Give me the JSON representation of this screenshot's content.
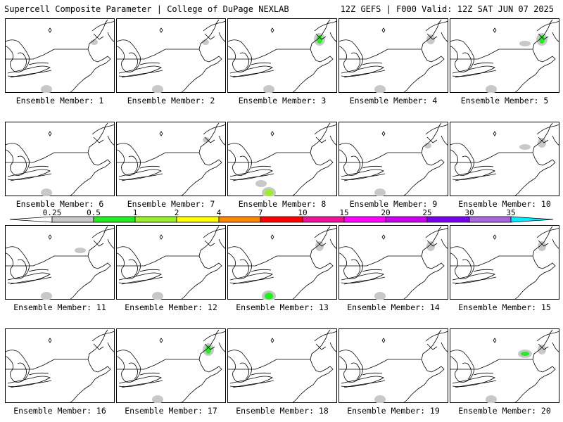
{
  "header": {
    "left_title": "Supercell Composite Parameter | College of DuPage NEXLAB",
    "right_title": "12Z GEFS | F000 Valid: 12Z SAT JUN 07 2025"
  },
  "panel_label_prefix": "Ensemble Member: ",
  "members": [
    {
      "label": "Ensemble Member: 1",
      "blobs": [
        {
          "lvl": 0,
          "loc": "ne-coast"
        },
        {
          "lvl": 0,
          "loc": "south"
        }
      ]
    },
    {
      "label": "Ensemble Member: 2",
      "blobs": [
        {
          "lvl": 0,
          "loc": "ne-coast"
        },
        {
          "lvl": 0,
          "loc": "south"
        }
      ]
    },
    {
      "label": "Ensemble Member: 3",
      "blobs": [
        {
          "lvl": 1,
          "loc": "maine"
        },
        {
          "lvl": 0,
          "loc": "south"
        }
      ]
    },
    {
      "label": "Ensemble Member: 4",
      "blobs": [
        {
          "lvl": 0,
          "loc": "maine"
        },
        {
          "lvl": 0,
          "loc": "south"
        }
      ]
    },
    {
      "label": "Ensemble Member: 5",
      "blobs": [
        {
          "lvl": 1,
          "loc": "maine"
        },
        {
          "lvl": 0,
          "loc": "ny"
        },
        {
          "lvl": 0,
          "loc": "south"
        }
      ]
    },
    {
      "label": "Ensemble Member: 6",
      "blobs": [
        {
          "lvl": 0,
          "loc": "south"
        }
      ]
    },
    {
      "label": "Ensemble Member: 7",
      "blobs": [
        {
          "lvl": 0,
          "loc": "vt"
        }
      ]
    },
    {
      "label": "Ensemble Member: 8",
      "blobs": [
        {
          "lvl": 0,
          "loc": "ohio"
        },
        {
          "lvl": 2,
          "loc": "south"
        }
      ]
    },
    {
      "label": "Ensemble Member: 9",
      "blobs": [
        {
          "lvl": 0,
          "loc": "ne-coast"
        },
        {
          "lvl": 0,
          "loc": "south"
        }
      ]
    },
    {
      "label": "Ensemble Member: 10",
      "blobs": [
        {
          "lvl": 0,
          "loc": "maine"
        },
        {
          "lvl": 0,
          "loc": "ny"
        }
      ]
    },
    {
      "label": "Ensemble Member: 11",
      "blobs": [
        {
          "lvl": 0,
          "loc": "ny"
        },
        {
          "lvl": 0,
          "loc": "south"
        }
      ]
    },
    {
      "label": "Ensemble Member: 12",
      "blobs": [
        {
          "lvl": 0,
          "loc": "south"
        }
      ]
    },
    {
      "label": "Ensemble Member: 13",
      "blobs": [
        {
          "lvl": 0,
          "loc": "maine"
        },
        {
          "lvl": 1,
          "loc": "south"
        }
      ]
    },
    {
      "label": "Ensemble Member: 14",
      "blobs": [
        {
          "lvl": 0,
          "loc": "maine"
        },
        {
          "lvl": 0,
          "loc": "south"
        }
      ]
    },
    {
      "label": "Ensemble Member: 15",
      "blobs": [
        {
          "lvl": 0,
          "loc": "maine"
        }
      ]
    },
    {
      "label": "Ensemble Member: 16",
      "blobs": []
    },
    {
      "label": "Ensemble Member: 17",
      "blobs": [
        {
          "lvl": 1,
          "loc": "maine"
        },
        {
          "lvl": 0,
          "loc": "south"
        }
      ]
    },
    {
      "label": "Ensemble Member: 18",
      "blobs": []
    },
    {
      "label": "Ensemble Member: 19",
      "blobs": [
        {
          "lvl": 0,
          "loc": "south"
        }
      ]
    },
    {
      "label": "Ensemble Member: 20",
      "blobs": [
        {
          "lvl": 1,
          "loc": "ny"
        },
        {
          "lvl": 0,
          "loc": "maine"
        },
        {
          "lvl": 0,
          "loc": "south"
        }
      ]
    }
  ],
  "legend": {
    "ticks": [
      "0.25",
      "0.5",
      "1",
      "2",
      "4",
      "7",
      "10",
      "15",
      "20",
      "25",
      "30",
      "35"
    ],
    "colors": [
      "#ffffff",
      "#c8c8c8",
      "#22ee22",
      "#99f02a",
      "#ffff00",
      "#ff8800",
      "#ff0000",
      "#ee1199",
      "#ff00ff",
      "#cc00ee",
      "#7700ee",
      "#aa66dd",
      "#00eeff"
    ]
  }
}
